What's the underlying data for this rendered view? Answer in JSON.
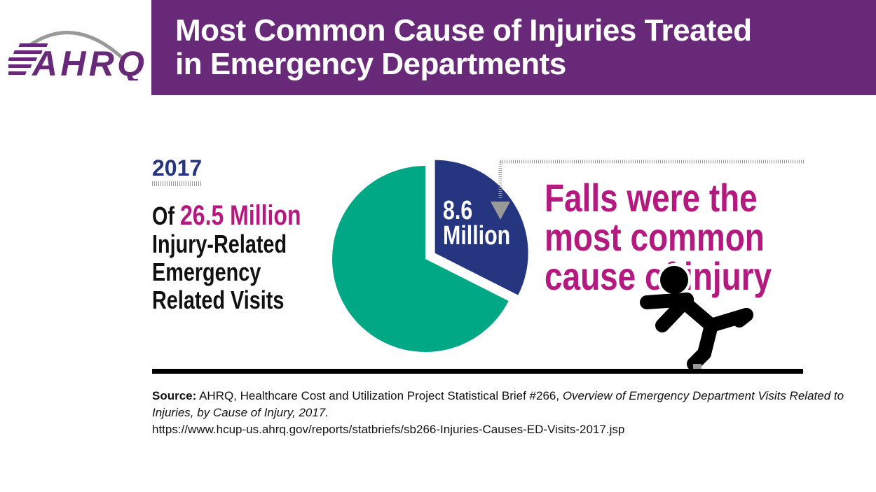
{
  "header": {
    "title_line1": "Most Common Cause of Injuries Treated",
    "title_line2": "in Emergency Departments",
    "logo_text": "AHRQ"
  },
  "year": "2017",
  "summary": {
    "prefix": "Of ",
    "total": "26.5 Million",
    "line2": "Injury-Related",
    "line3": "Emergency",
    "line4": "Related Visits"
  },
  "headline": {
    "line1": "Falls were the",
    "line2": "most common",
    "line3": "cause of injury"
  },
  "source": {
    "label": "Source:",
    "text": " AHRQ, Healthcare Cost and Utilization Project Statistical Brief #266, ",
    "italic": "Overview of Emergency Department Visits Related to Injuries, by Cause of Injury, 2017.",
    "url": "https://www.hcup-us.ahrq.gov/reports/statbriefs/sb266-Injuries-Causes-ED-Visits-2017.jsp"
  },
  "colors": {
    "purple": "#682a78",
    "magenta": "#b3197f",
    "navy": "#25357f",
    "teal": "#00a886"
  },
  "chart_data": {
    "type": "pie",
    "total": 26.5,
    "unit": "Million",
    "slices": [
      {
        "label_value": "8.6",
        "label_unit": "Million",
        "value": 8.6,
        "color": "#25357f",
        "exploded": true
      },
      {
        "value": 17.9,
        "color": "#00a886",
        "exploded": false
      }
    ]
  }
}
